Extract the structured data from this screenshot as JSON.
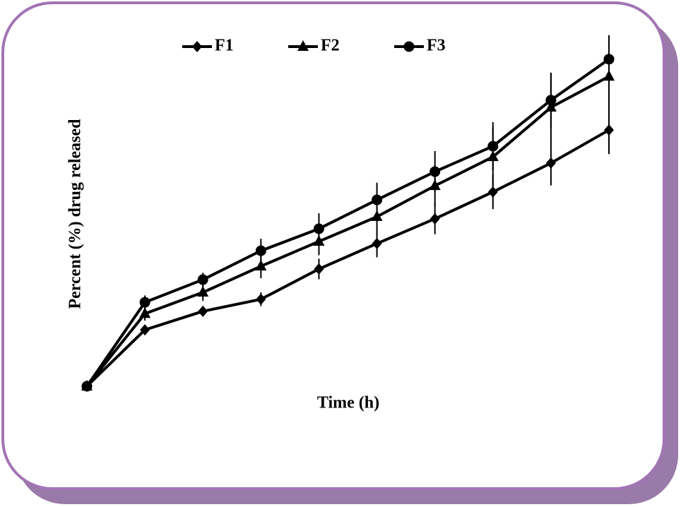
{
  "chart_data": {
    "type": "line",
    "xlabel": "Time (h)",
    "ylabel": "Percent (%)  drug released",
    "categories": [
      null,
      null,
      null,
      null,
      null,
      null,
      null,
      null,
      null,
      null
    ],
    "ylim": [
      0,
      100
    ],
    "series": [
      {
        "name": "F1",
        "color": "#000000",
        "marker": "diamond",
        "values": [
          0,
          16.4,
          21.8,
          25.3,
          34.1,
          41.5,
          48.7,
          56.5,
          64.9,
          74.5
        ],
        "errors": [
          1,
          1.5,
          1.5,
          2,
          3,
          4,
          4.5,
          5,
          6.5,
          7
        ]
      },
      {
        "name": "F2",
        "color": "#000000",
        "marker": "triangle",
        "values": [
          0,
          21.1,
          27.3,
          34.9,
          42.1,
          49.3,
          58.3,
          66.7,
          81.1,
          90.1
        ],
        "errors": [
          1,
          2,
          2.5,
          3.5,
          4,
          5,
          6,
          8.5,
          10,
          12
        ]
      },
      {
        "name": "F3",
        "color": "#000000",
        "marker": "circle",
        "values": [
          0,
          24.4,
          31.0,
          39.4,
          45.8,
          54.2,
          62.4,
          69.8,
          83.2,
          95.1
        ],
        "errors": [
          1,
          2,
          2,
          3.5,
          4.5,
          5,
          6,
          7,
          8,
          5
        ]
      }
    ],
    "legend": "top"
  }
}
